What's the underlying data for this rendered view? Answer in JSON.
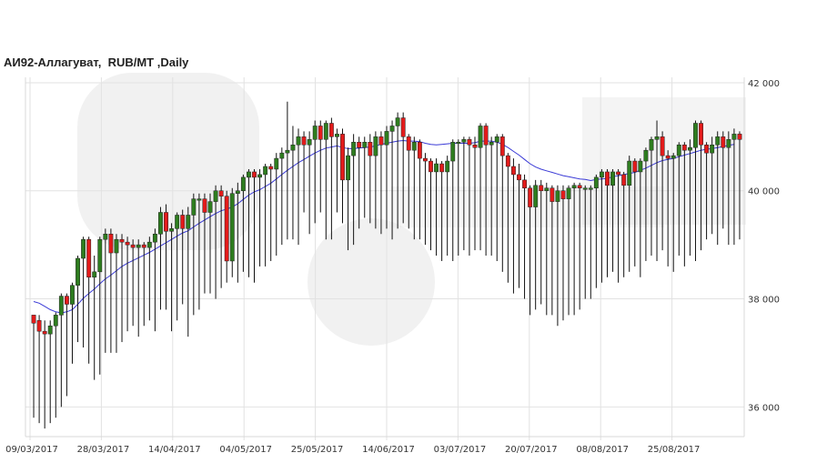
{
  "chart_data": {
    "type": "candlestick",
    "title": "АИ92-Аллагуват,  RUB/MT ,Daily",
    "x_tick_labels": [
      "09/03/2017",
      "28/03/2017",
      "14/04/2017",
      "04/05/2017",
      "25/05/2017",
      "14/06/2017",
      "03/07/2017",
      "20/07/2017",
      "08/08/2017",
      "25/08/2017"
    ],
    "y_tick_labels": [
      "42 000",
      "40 000",
      "38 000",
      "36 000"
    ],
    "y_ticks": [
      42000,
      40000,
      38000,
      36000
    ],
    "ylim": [
      35450,
      42100
    ],
    "grid": true,
    "up_color": "#2e7d1f",
    "down_color": "#e31b1b",
    "ma_color": "#3a3ad6",
    "watermark_color": "#e6e6e6",
    "candles": [
      [
        37700,
        37550,
        37700,
        35800
      ],
      [
        37600,
        37400,
        37700,
        35700
      ],
      [
        37400,
        37350,
        37600,
        35600
      ],
      [
        37350,
        37500,
        37600,
        35700
      ],
      [
        37500,
        37700,
        37750,
        35800
      ],
      [
        37700,
        38050,
        38100,
        36000
      ],
      [
        38050,
        37900,
        38100,
        36200
      ],
      [
        37900,
        38250,
        38300,
        36800
      ],
      [
        38250,
        38750,
        38800,
        37200
      ],
      [
        38750,
        39100,
        39150,
        37100
      ],
      [
        39100,
        38400,
        39150,
        36800
      ],
      [
        38400,
        38500,
        38800,
        36500
      ],
      [
        38500,
        39100,
        39150,
        36600
      ],
      [
        39100,
        39200,
        39300,
        37000
      ],
      [
        39200,
        38850,
        39300,
        37000
      ],
      [
        38850,
        39100,
        39200,
        37000
      ],
      [
        39100,
        39050,
        39200,
        37200
      ],
      [
        39050,
        39000,
        39150,
        37400
      ],
      [
        39000,
        38950,
        39100,
        37500
      ],
      [
        38950,
        39000,
        39100,
        37300
      ],
      [
        39000,
        38950,
        39050,
        37500
      ],
      [
        38950,
        39050,
        39150,
        37600
      ],
      [
        39050,
        39200,
        39300,
        37400
      ],
      [
        39200,
        39600,
        39700,
        37800
      ],
      [
        39600,
        39250,
        39750,
        37800
      ],
      [
        39250,
        39300,
        39400,
        37400
      ],
      [
        39300,
        39550,
        39600,
        37600
      ],
      [
        39550,
        39300,
        39650,
        37900
      ],
      [
        39300,
        39550,
        39700,
        37300
      ],
      [
        39550,
        39850,
        39950,
        37700
      ],
      [
        39850,
        39850,
        39950,
        37800
      ],
      [
        39850,
        39600,
        39950,
        38100
      ],
      [
        39600,
        39800,
        39950,
        38100
      ],
      [
        39800,
        40000,
        40100,
        38000
      ],
      [
        40000,
        39900,
        40100,
        38200
      ],
      [
        39900,
        38700,
        40000,
        38300
      ],
      [
        38700,
        39950,
        40050,
        38400
      ],
      [
        39950,
        40000,
        40150,
        38300
      ],
      [
        40000,
        40250,
        40300,
        38500
      ],
      [
        40250,
        40350,
        40400,
        38400
      ],
      [
        40350,
        40250,
        40400,
        38300
      ],
      [
        40250,
        40300,
        40400,
        38600
      ],
      [
        40300,
        40450,
        40500,
        38600
      ],
      [
        40450,
        40400,
        40500,
        38700
      ],
      [
        40400,
        40600,
        40700,
        38800
      ],
      [
        40600,
        40700,
        40800,
        39000
      ],
      [
        40700,
        40750,
        41650,
        39100
      ],
      [
        40750,
        40850,
        41200,
        39100
      ],
      [
        40850,
        41000,
        41150,
        39000
      ],
      [
        41000,
        40850,
        41100,
        39600
      ],
      [
        40850,
        40950,
        41100,
        39200
      ],
      [
        40950,
        41200,
        41300,
        39400
      ],
      [
        41200,
        40950,
        41300,
        39600
      ],
      [
        40950,
        41250,
        41300,
        39100
      ],
      [
        41250,
        41000,
        41350,
        39100
      ],
      [
        41000,
        41050,
        41150,
        39600
      ],
      [
        41050,
        40200,
        41150,
        39400
      ],
      [
        40200,
        40650,
        40800,
        38900
      ],
      [
        40650,
        40900,
        41050,
        39000
      ],
      [
        40900,
        40800,
        41000,
        39300
      ],
      [
        40800,
        40900,
        41000,
        39500
      ],
      [
        40900,
        40650,
        41050,
        39400
      ],
      [
        40650,
        41000,
        41100,
        39300
      ],
      [
        41000,
        40850,
        41100,
        39200
      ],
      [
        40850,
        41100,
        41200,
        39300
      ],
      [
        41100,
        41200,
        41300,
        39100
      ],
      [
        41200,
        41350,
        41450,
        39300
      ],
      [
        41350,
        41000,
        41450,
        39400
      ],
      [
        41000,
        40750,
        41050,
        39300
      ],
      [
        40750,
        40900,
        41000,
        39100
      ],
      [
        40900,
        40600,
        40950,
        39100
      ],
      [
        40600,
        40550,
        40700,
        39000
      ],
      [
        40550,
        40350,
        40600,
        38900
      ],
      [
        40350,
        40500,
        40600,
        38800
      ],
      [
        40500,
        40350,
        40550,
        38700
      ],
      [
        40350,
        40550,
        40650,
        38800
      ],
      [
        40550,
        40900,
        40950,
        38700
      ],
      [
        40900,
        40900,
        40950,
        38800
      ],
      [
        40900,
        40950,
        41000,
        38900
      ],
      [
        40950,
        40850,
        41000,
        38800
      ],
      [
        40850,
        40800,
        41000,
        38900
      ],
      [
        40800,
        41200,
        41250,
        38900
      ],
      [
        41200,
        40850,
        41250,
        38800
      ],
      [
        40850,
        40900,
        41000,
        38800
      ],
      [
        40900,
        41000,
        41050,
        38700
      ],
      [
        41000,
        40650,
        41050,
        38500
      ],
      [
        40650,
        40450,
        40700,
        38300
      ],
      [
        40450,
        40300,
        40600,
        38100
      ],
      [
        40300,
        40200,
        40500,
        38200
      ],
      [
        40200,
        40050,
        40300,
        38000
      ],
      [
        40050,
        39700,
        40100,
        37700
      ],
      [
        39700,
        40100,
        40200,
        37800
      ],
      [
        40100,
        40000,
        40200,
        37900
      ],
      [
        40000,
        40050,
        40150,
        37700
      ],
      [
        40050,
        39800,
        40100,
        37700
      ],
      [
        39800,
        40000,
        40100,
        37500
      ],
      [
        40000,
        39850,
        40100,
        37600
      ],
      [
        39850,
        40050,
        40100,
        37700
      ],
      [
        40050,
        40100,
        40150,
        37700
      ],
      [
        40100,
        40050,
        40150,
        37800
      ],
      [
        40050,
        40050,
        40100,
        38000
      ],
      [
        40050,
        40050,
        40100,
        38000
      ],
      [
        40050,
        40250,
        40300,
        38200
      ],
      [
        40250,
        40350,
        40400,
        38300
      ],
      [
        40350,
        40100,
        40400,
        38400
      ],
      [
        40100,
        40350,
        40400,
        38500
      ],
      [
        40350,
        40300,
        40400,
        38300
      ],
      [
        40300,
        40100,
        40350,
        38400
      ],
      [
        40100,
        40550,
        40650,
        38500
      ],
      [
        40550,
        40350,
        40600,
        38600
      ],
      [
        40350,
        40550,
        40600,
        38400
      ],
      [
        40550,
        40750,
        40800,
        38700
      ],
      [
        40750,
        40950,
        41000,
        38800
      ],
      [
        40950,
        41000,
        41300,
        38700
      ],
      [
        41000,
        40650,
        41100,
        38900
      ],
      [
        40650,
        40600,
        40750,
        38600
      ],
      [
        40600,
        40650,
        40700,
        38500
      ],
      [
        40650,
        40850,
        40900,
        38800
      ],
      [
        40850,
        40750,
        40900,
        38600
      ],
      [
        40750,
        40800,
        40950,
        38800
      ],
      [
        40800,
        41250,
        41300,
        38700
      ],
      [
        41250,
        40850,
        41300,
        38900
      ],
      [
        40850,
        40700,
        40900,
        39100
      ],
      [
        40700,
        40850,
        41000,
        39200
      ],
      [
        40850,
        41000,
        41100,
        39000
      ],
      [
        41000,
        40800,
        41100,
        39300
      ],
      [
        40800,
        40950,
        41100,
        39000
      ],
      [
        40950,
        41050,
        41150,
        39000
      ],
      [
        41050,
        40950,
        41100,
        39100
      ]
    ],
    "moving_average": [
      37950,
      37920,
      37860,
      37800,
      37760,
      37740,
      37760,
      37800,
      37900,
      38010,
      38100,
      38180,
      38280,
      38370,
      38440,
      38520,
      38600,
      38660,
      38710,
      38760,
      38810,
      38860,
      38920,
      38980,
      39040,
      39100,
      39160,
      39220,
      39260,
      39330,
      39400,
      39460,
      39520,
      39580,
      39630,
      39660,
      39700,
      39760,
      39840,
      39920,
      39980,
      40020,
      40080,
      40140,
      40220,
      40300,
      40380,
      40450,
      40520,
      40580,
      40640,
      40700,
      40750,
      40790,
      40810,
      40830,
      40800,
      40780,
      40780,
      40790,
      40800,
      40810,
      40830,
      40860,
      40880,
      40900,
      40920,
      40930,
      40920,
      40920,
      40910,
      40880,
      40860,
      40850,
      40860,
      40870,
      40880,
      40880,
      40880,
      40880,
      40890,
      40920,
      40920,
      40920,
      40900,
      40860,
      40800,
      40730,
      40660,
      40580,
      40500,
      40440,
      40400,
      40370,
      40340,
      40310,
      40280,
      40260,
      40240,
      40220,
      40210,
      40190,
      40210,
      40220,
      40230,
      40260,
      40280,
      40300,
      40320,
      40340,
      40380,
      40420,
      40470,
      40520,
      40560,
      40580,
      40600,
      40630,
      40660,
      40690,
      40720,
      40750,
      40770,
      40780,
      40800,
      40820,
      40840,
      40860
    ]
  }
}
